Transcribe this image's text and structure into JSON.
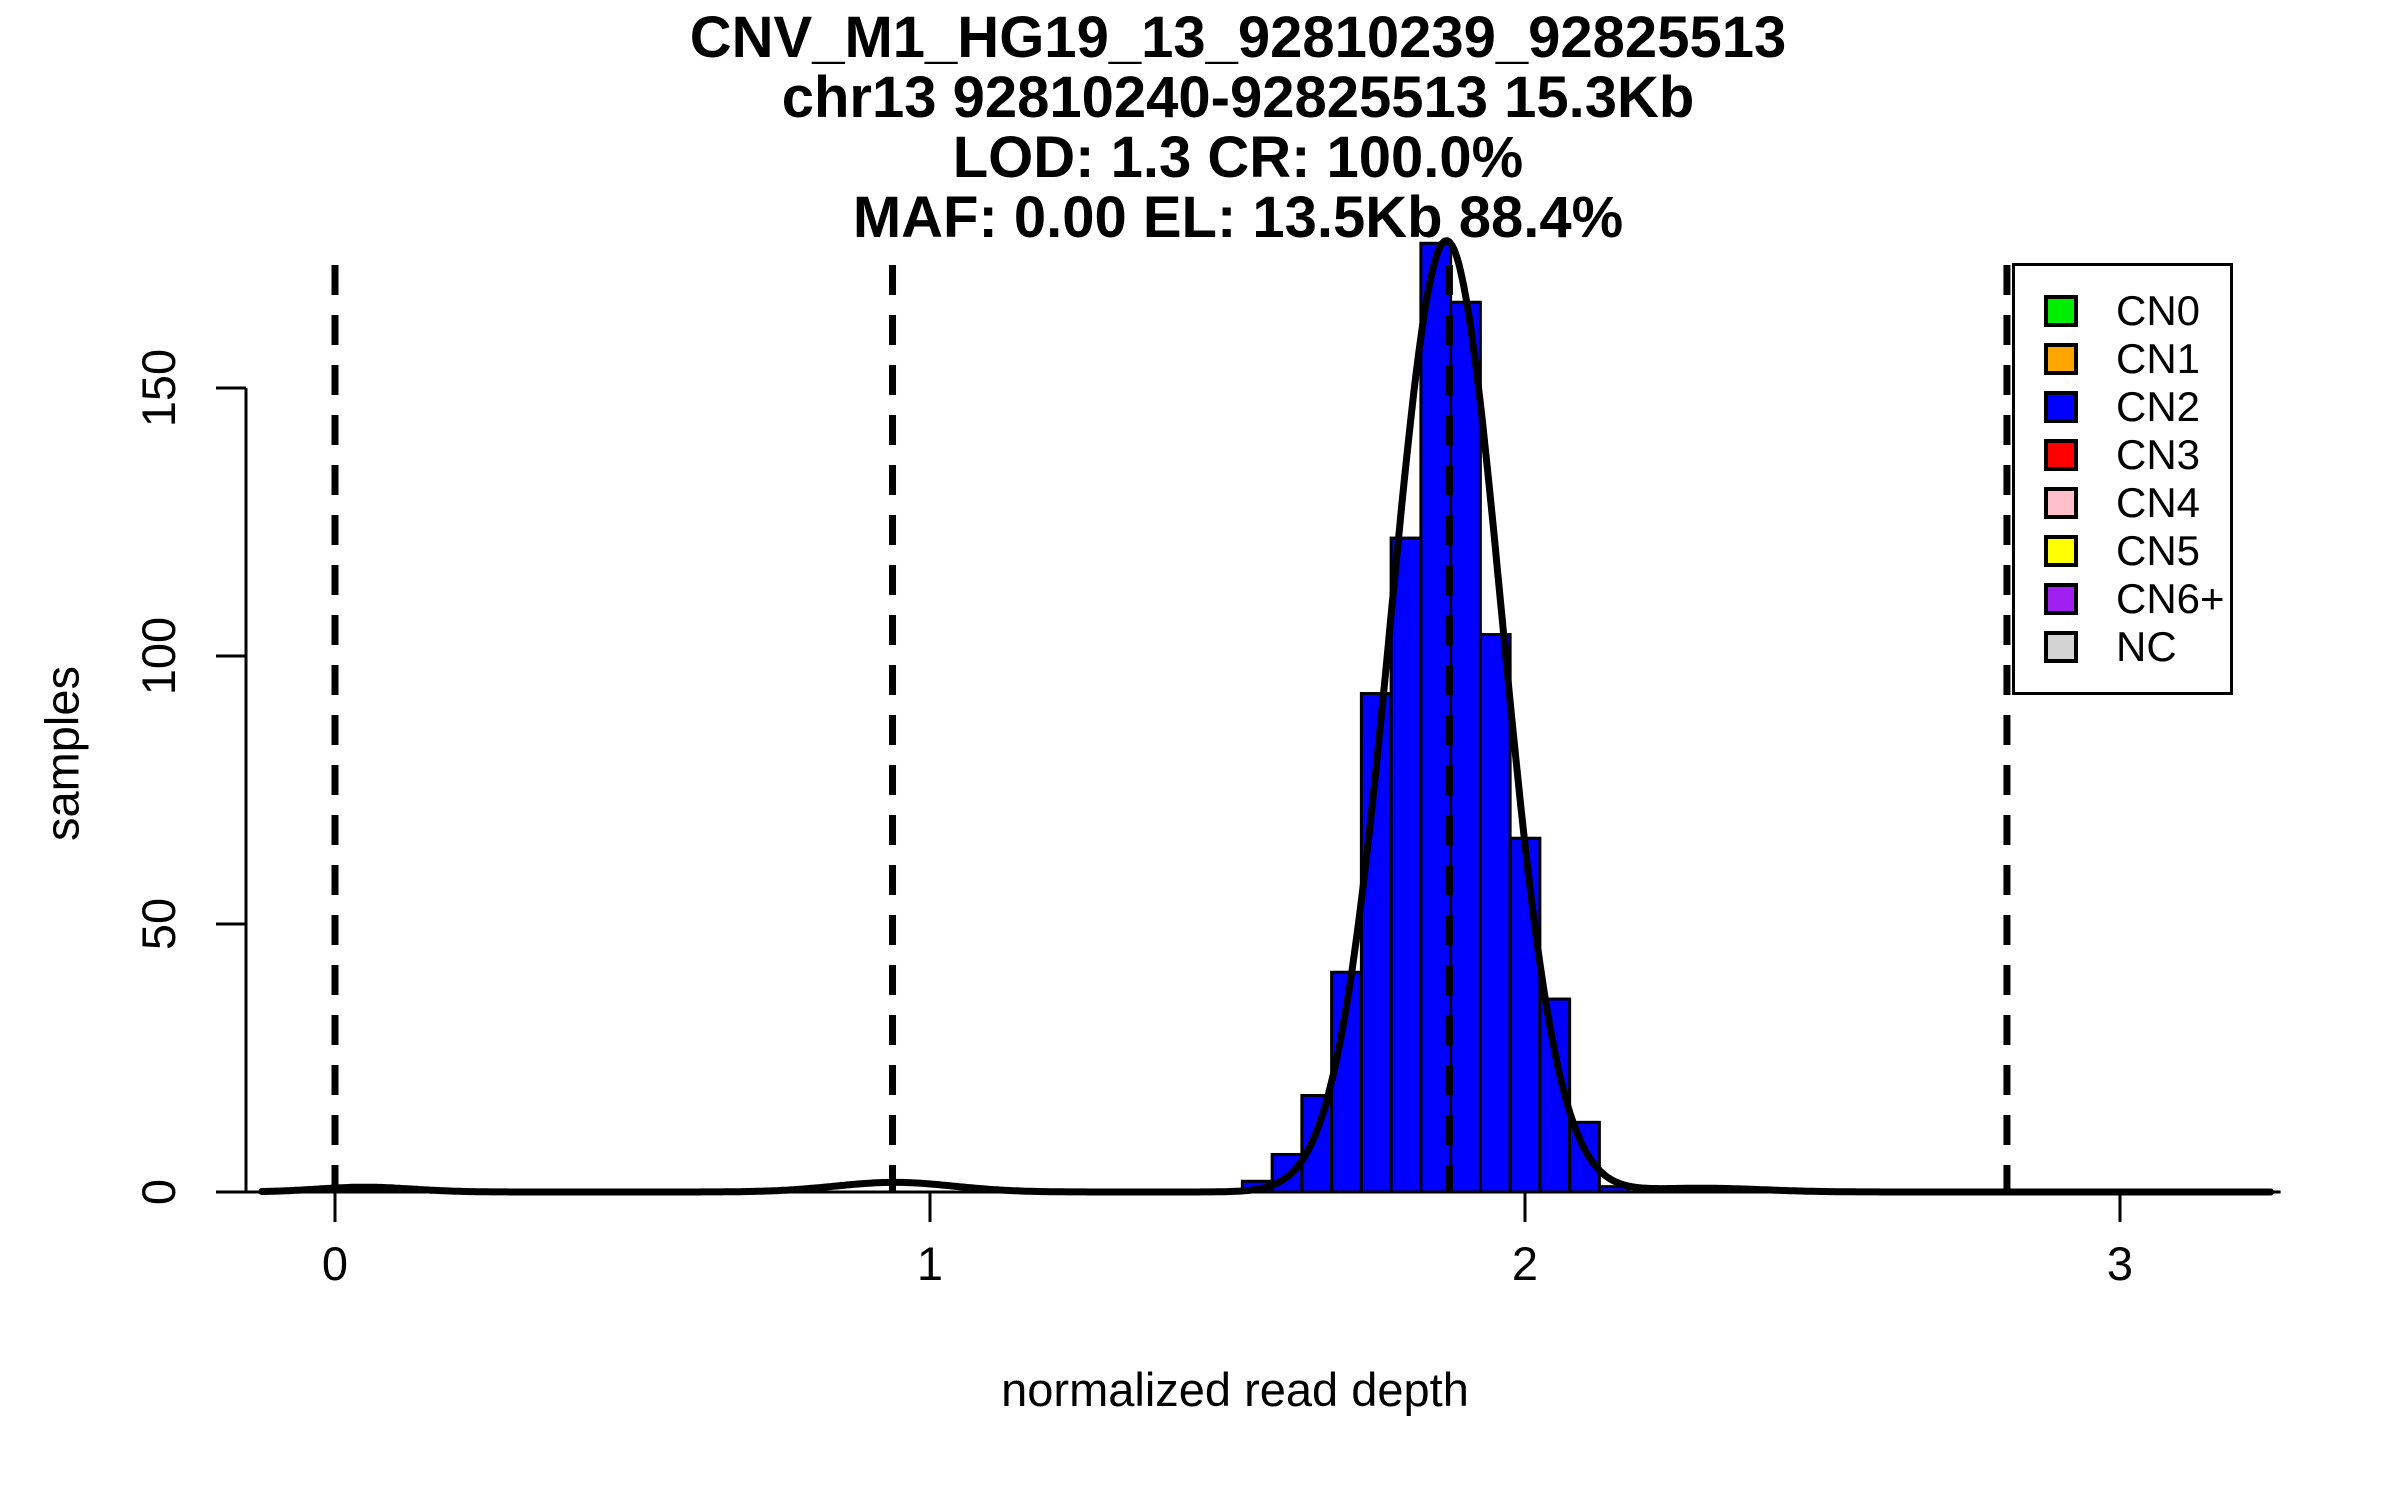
{
  "title_lines": [
    "CNV_M1_HG19_13_92810239_92825513",
    "chr13 92810240-92825513 15.3Kb",
    "LOD: 1.3 CR: 100.0%",
    "MAF: 0.00 EL: 13.5Kb 88.4%"
  ],
  "axes": {
    "x_label": "normalized read depth",
    "y_label": "samples",
    "x_tick_labels": [
      "0",
      "1",
      "2",
      "3"
    ],
    "x_tick_values": [
      0,
      1,
      2,
      3
    ],
    "y_tick_labels": [
      "0",
      "50",
      "100",
      "150"
    ],
    "y_tick_values": [
      0,
      50,
      100,
      150
    ]
  },
  "legend": {
    "items": [
      {
        "label": "CN0",
        "color": "#00EE00"
      },
      {
        "label": "CN1",
        "color": "#FFA500"
      },
      {
        "label": "CN2",
        "color": "#0000FF"
      },
      {
        "label": "CN3",
        "color": "#FF0000"
      },
      {
        "label": "CN4",
        "color": "#FFC0CB"
      },
      {
        "label": "CN5",
        "color": "#FFFF00"
      },
      {
        "label": "CN6+",
        "color": "#A020F0"
      },
      {
        "label": "NC",
        "color": "#D3D3D3"
      }
    ]
  },
  "chart_data": {
    "type": "bar",
    "subtype": "histogram-with-density",
    "title": "CNV_M1_HG19_13_92810239_92825513\nchr13 92810240-92825513 15.3Kb\nLOD: 1.3 CR: 100.0%\nMAF: 0.00 EL: 13.5Kb 88.4%",
    "xlabel": "normalized read depth",
    "ylabel": "samples",
    "xlim": [
      -0.15,
      3.27
    ],
    "ylim": [
      0,
      183
    ],
    "grid": false,
    "legend_position": "top-right",
    "bar_color": "#0000FF",
    "bar_border_color": "#000000",
    "bins": {
      "start": 1.525,
      "width": 0.05,
      "counts": [
        2,
        7,
        18,
        41,
        93,
        122,
        177,
        166,
        104,
        66,
        36,
        13,
        1
      ]
    },
    "vlines_dashed": [
      0.0,
      0.937,
      1.873,
      2.81
    ],
    "density_curve": {
      "color": "#000000",
      "domain": [
        -0.123,
        3.256
      ],
      "components": [
        {
          "mu": 1.868,
          "sigma": 0.093,
          "amp": 177.5
        },
        {
          "mu": 0.94,
          "sigma": 0.1,
          "amp": 1.8
        },
        {
          "mu": 0.05,
          "sigma": 0.08,
          "amp": 0.9
        },
        {
          "mu": 2.3,
          "sigma": 0.1,
          "amp": 0.7
        }
      ]
    }
  }
}
